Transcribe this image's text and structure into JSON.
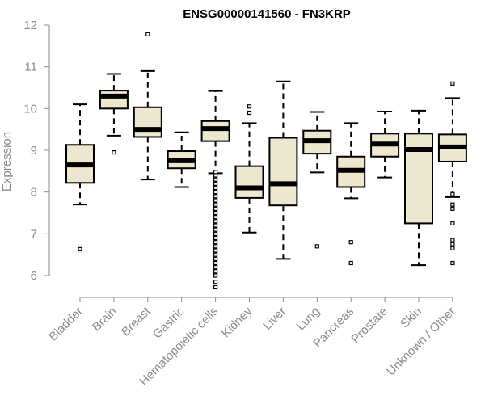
{
  "chart_data": {
    "type": "boxplot",
    "title": "ENSG00000141560 - FN3KRP",
    "xlabel": "",
    "ylabel": "Expression",
    "ylim": [
      5.6,
      12.2
    ],
    "yticks": [
      6,
      7,
      8,
      9,
      10,
      11,
      12
    ],
    "box_fill": "#ede7cf",
    "categories": [
      "Bladder",
      "Brain",
      "Breast",
      "Gastric",
      "Hematopoietic cells",
      "Kidney",
      "Liver",
      "Lung",
      "Pancreas",
      "Prostate",
      "Skin",
      "Unknown / Other"
    ],
    "boxes": [
      {
        "name": "Bladder",
        "whisker_low": 7.7,
        "q1": 8.22,
        "median": 8.65,
        "q3": 9.13,
        "whisker_high": 10.1,
        "outliers": [
          6.63
        ]
      },
      {
        "name": "Brain",
        "whisker_low": 9.35,
        "q1": 10.0,
        "median": 10.3,
        "q3": 10.43,
        "whisker_high": 10.83,
        "outliers": [
          8.95
        ]
      },
      {
        "name": "Breast",
        "whisker_low": 8.3,
        "q1": 9.32,
        "median": 9.5,
        "q3": 10.03,
        "whisker_high": 10.9,
        "outliers": [
          11.78
        ]
      },
      {
        "name": "Gastric",
        "whisker_low": 8.12,
        "q1": 8.57,
        "median": 8.75,
        "q3": 8.98,
        "whisker_high": 9.43,
        "outliers": []
      },
      {
        "name": "Hematopoietic cells",
        "whisker_low": 8.45,
        "q1": 9.22,
        "median": 9.52,
        "q3": 9.7,
        "whisker_high": 10.42,
        "outliers": [
          5.72,
          5.85,
          6.0,
          6.1,
          6.2,
          6.3,
          6.4,
          6.5,
          6.6,
          6.7,
          6.8,
          6.9,
          7.0,
          7.1,
          7.2,
          7.3,
          7.4,
          7.5,
          7.6,
          7.7,
          7.8,
          7.9,
          8.0,
          8.1,
          8.2,
          8.3,
          8.4,
          8.48
        ]
      },
      {
        "name": "Kidney",
        "whisker_low": 7.03,
        "q1": 7.86,
        "median": 8.1,
        "q3": 8.62,
        "whisker_high": 9.65,
        "outliers": [
          9.9,
          10.05
        ]
      },
      {
        "name": "Liver",
        "whisker_low": 6.4,
        "q1": 7.68,
        "median": 8.2,
        "q3": 9.3,
        "whisker_high": 10.65,
        "outliers": []
      },
      {
        "name": "Lung",
        "whisker_low": 8.47,
        "q1": 8.92,
        "median": 9.23,
        "q3": 9.47,
        "whisker_high": 9.92,
        "outliers": [
          6.7
        ]
      },
      {
        "name": "Pancreas",
        "whisker_low": 7.85,
        "q1": 8.12,
        "median": 8.52,
        "q3": 8.85,
        "whisker_high": 9.65,
        "outliers": [
          6.8,
          6.3
        ]
      },
      {
        "name": "Prostate",
        "whisker_low": 8.35,
        "q1": 8.85,
        "median": 9.15,
        "q3": 9.4,
        "whisker_high": 9.93,
        "outliers": []
      },
      {
        "name": "Skin",
        "whisker_low": 6.25,
        "q1": 7.25,
        "median": 9.02,
        "q3": 9.4,
        "whisker_high": 9.95,
        "outliers": []
      },
      {
        "name": "Unknown / Other",
        "whisker_low": 7.88,
        "q1": 8.73,
        "median": 9.08,
        "q3": 9.38,
        "whisker_high": 10.25,
        "outliers": [
          10.6,
          7.95,
          7.7,
          7.6,
          7.25,
          6.85,
          6.75,
          6.65,
          6.3
        ]
      }
    ]
  }
}
